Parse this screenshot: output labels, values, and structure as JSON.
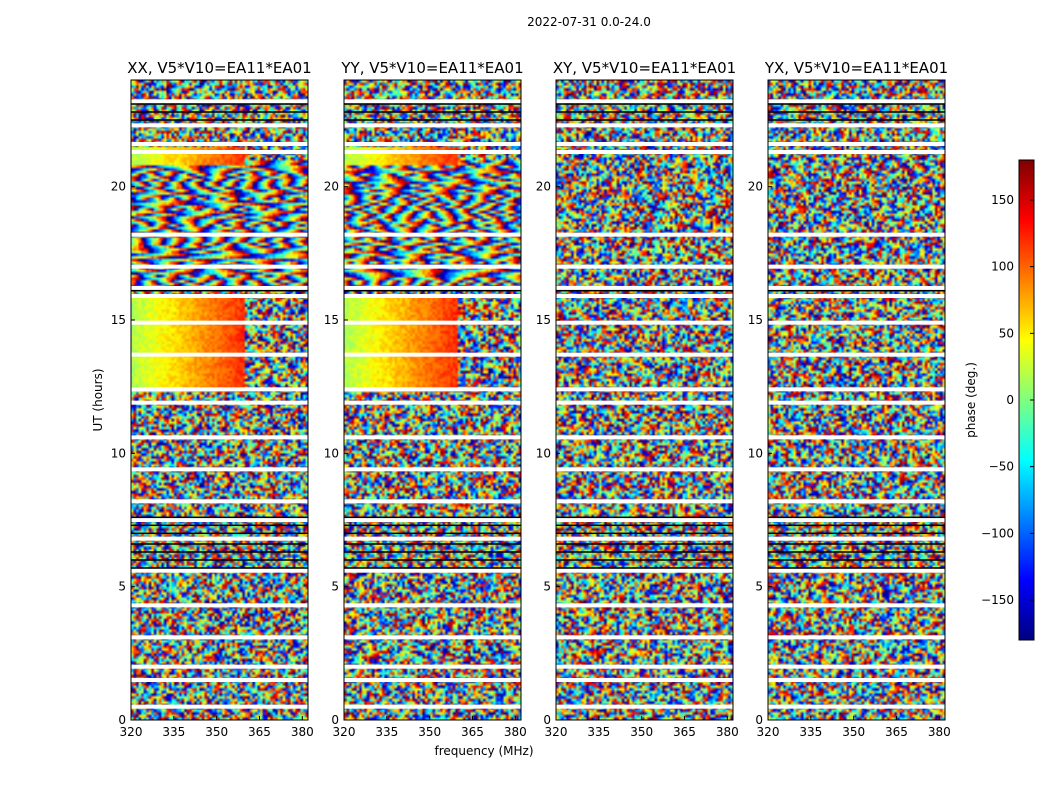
{
  "chart_data": {
    "type": "heatmap",
    "suptitle": "2022-07-31 0.0-24.0",
    "xlabel": "frequency (MHz)",
    "ylabel": "UT (hours)",
    "x_range": [
      320,
      382
    ],
    "y_range": [
      0,
      24
    ],
    "x_ticks": [
      320,
      335,
      350,
      365,
      380
    ],
    "x_tick_labels": [
      "320",
      "335",
      "350",
      "365",
      "380"
    ],
    "y_ticks": [
      0,
      5,
      10,
      15,
      20
    ],
    "y_tick_labels": [
      "0",
      "5",
      "10",
      "15",
      "20"
    ],
    "colorbar": {
      "label": "phase (deg.)",
      "range": [
        -180,
        180
      ],
      "ticks": [
        -150,
        -100,
        -50,
        0,
        50,
        100,
        150
      ],
      "tick_labels": [
        "−150",
        "−100",
        "−50",
        "0",
        "50",
        "100",
        "150"
      ],
      "colors": [
        "#00007f",
        "#0000ff",
        "#007fff",
        "#00ffff",
        "#7fff7f",
        "#ffff00",
        "#ff7f00",
        "#ff0000",
        "#7f0000"
      ]
    },
    "panels": [
      {
        "title": "XX, V5*V10=EA11*EA01",
        "coherent": true
      },
      {
        "title": "YY, V5*V10=EA11*EA01",
        "coherent": true
      },
      {
        "title": "XY, V5*V10=EA11*EA01",
        "coherent": false
      },
      {
        "title": "YX, V5*V10=EA11*EA01",
        "coherent": false
      }
    ],
    "gaps_ut": [
      0.5,
      1.5,
      2.0,
      3.1,
      4.3,
      5.6,
      6.8,
      7.5,
      8.2,
      9.4,
      10.6,
      11.9,
      12.4,
      13.7,
      14.9,
      15.9,
      16.2,
      17.0,
      18.2,
      21.3,
      21.6,
      22.3,
      23.2
    ],
    "black_lines_ut": [
      5.7,
      6.0,
      6.3,
      6.6,
      7.0,
      7.3,
      7.6,
      16.1,
      22.5,
      22.8,
      23.1
    ]
  }
}
